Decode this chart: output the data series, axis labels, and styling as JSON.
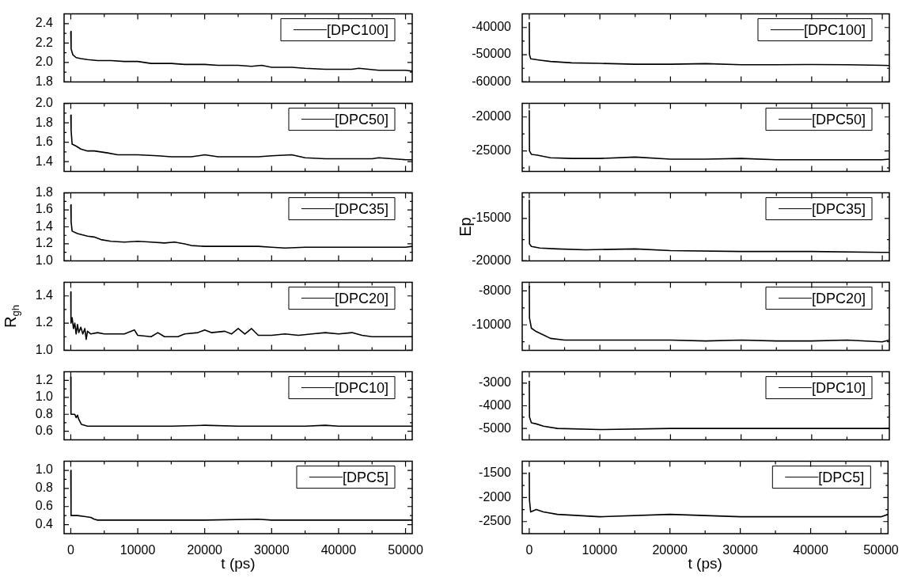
{
  "chart_data": [
    {
      "type": "line",
      "legend": "top right",
      "tick_labels": "y",
      "xlim": [
        -1000,
        51000
      ],
      "xticks": [
        0,
        {
          "value": 5000,
          "label": null
        },
        10000,
        {
          "value": 15000,
          "label": null
        },
        20000,
        {
          "value": 25000,
          "label": null
        },
        30000,
        {
          "value": 35000,
          "label": null
        },
        40000,
        {
          "value": 45000,
          "label": null
        },
        50000
      ],
      "ylim": [
        1.8,
        2.5
      ],
      "yticks": [
        1.8,
        {
          "value": 1.9,
          "label": null
        },
        {
          "value": 2,
          "label": "2.0"
        },
        {
          "value": 2.1,
          "label": null
        },
        2.2,
        {
          "value": 2.3,
          "label": null
        },
        2.4
      ],
      "x": [
        0,
        50,
        300,
        800,
        1500,
        2500,
        4000,
        6000,
        8000,
        10000,
        11000,
        12000,
        15000,
        17000,
        20000,
        22000,
        25000,
        27000,
        28500,
        30000,
        32000,
        33000,
        35000,
        38000,
        40000,
        42000,
        43000,
        44500,
        46000,
        48000,
        50000,
        51000
      ],
      "series": [
        {
          "name": "[DPC100]",
          "color": "#000000",
          "values": [
            2.32,
            2.14,
            2.08,
            2.05,
            2.04,
            2.03,
            2.02,
            2.02,
            2.01,
            2.01,
            2.0,
            1.99,
            1.99,
            1.98,
            1.98,
            1.97,
            1.97,
            1.96,
            1.97,
            1.95,
            1.95,
            1.95,
            1.94,
            1.93,
            1.93,
            1.93,
            1.94,
            1.93,
            1.92,
            1.92,
            1.92,
            1.91
          ]
        }
      ]
    },
    {
      "type": "line",
      "legend": "top right",
      "tick_labels": "y",
      "xlim": [
        -1000,
        51000
      ],
      "xticks": [
        0,
        {
          "value": 5000,
          "label": null
        },
        10000,
        {
          "value": 15000,
          "label": null
        },
        20000,
        {
          "value": 25000,
          "label": null
        },
        30000,
        {
          "value": 35000,
          "label": null
        },
        40000,
        {
          "value": 45000,
          "label": null
        },
        50000
      ],
      "ylim": [
        1.3,
        2.0
      ],
      "yticks": [
        1.4,
        {
          "value": 1.5,
          "label": null
        },
        1.6,
        {
          "value": 1.7,
          "label": null
        },
        1.8,
        {
          "value": 1.9,
          "label": null
        },
        {
          "value": 2,
          "label": "2.0"
        }
      ],
      "x": [
        0,
        50,
        200,
        800,
        1500,
        2500,
        3500,
        4500,
        5500,
        7000,
        10000,
        13000,
        15000,
        18000,
        20000,
        22000,
        25000,
        28000,
        30000,
        33000,
        35000,
        38000,
        40000,
        45000,
        46000,
        48000,
        50000,
        51000
      ],
      "series": [
        {
          "name": "[DPC50]",
          "color": "#000000",
          "values": [
            1.88,
            1.72,
            1.58,
            1.56,
            1.53,
            1.51,
            1.51,
            1.5,
            1.49,
            1.47,
            1.47,
            1.46,
            1.45,
            1.45,
            1.47,
            1.45,
            1.45,
            1.45,
            1.46,
            1.47,
            1.44,
            1.43,
            1.43,
            1.43,
            1.44,
            1.43,
            1.42,
            1.42
          ]
        }
      ]
    },
    {
      "type": "line",
      "legend": "top right",
      "tick_labels": "y",
      "xlim": [
        -1000,
        51000
      ],
      "xticks": [
        0,
        {
          "value": 5000,
          "label": null
        },
        10000,
        {
          "value": 15000,
          "label": null
        },
        20000,
        {
          "value": 25000,
          "label": null
        },
        30000,
        {
          "value": 35000,
          "label": null
        },
        40000,
        {
          "value": 45000,
          "label": null
        },
        50000
      ],
      "ylim": [
        1.0,
        1.8
      ],
      "yticks": [
        {
          "value": 1,
          "label": "1.0"
        },
        {
          "value": 1.1,
          "label": null
        },
        1.2,
        {
          "value": 1.3,
          "label": null
        },
        1.4,
        {
          "value": 1.5,
          "label": null
        },
        1.6,
        {
          "value": 1.7,
          "label": null
        },
        1.8
      ],
      "x": [
        0,
        50,
        200,
        1000,
        2500,
        3500,
        4500,
        6000,
        8000,
        10000,
        12000,
        14000,
        15500,
        17000,
        18000,
        20000,
        25000,
        28000,
        30000,
        32000,
        35000,
        40000,
        45000,
        50000,
        51000
      ],
      "series": [
        {
          "name": "[DPC35]",
          "color": "#000000",
          "values": [
            1.66,
            1.46,
            1.35,
            1.32,
            1.29,
            1.28,
            1.25,
            1.23,
            1.22,
            1.23,
            1.22,
            1.21,
            1.22,
            1.2,
            1.18,
            1.17,
            1.17,
            1.17,
            1.16,
            1.15,
            1.16,
            1.16,
            1.16,
            1.16,
            1.17
          ]
        }
      ]
    },
    {
      "type": "line",
      "legend": "top right",
      "tick_labels": "y",
      "ylabel": "R$_{gh}$",
      "xlim": [
        -1000,
        51000
      ],
      "xticks": [
        0,
        {
          "value": 5000,
          "label": null
        },
        10000,
        {
          "value": 15000,
          "label": null
        },
        20000,
        {
          "value": 25000,
          "label": null
        },
        30000,
        {
          "value": 35000,
          "label": null
        },
        40000,
        {
          "value": 45000,
          "label": null
        },
        50000
      ],
      "ylim": [
        1.0,
        1.5
      ],
      "yticks": [
        {
          "value": 1,
          "label": "1.0"
        },
        {
          "value": 1.1,
          "label": null
        },
        1.2,
        {
          "value": 1.3,
          "label": null
        },
        1.4
      ],
      "x": [
        0,
        30,
        200,
        400,
        600,
        800,
        1000,
        1200,
        1500,
        1800,
        2100,
        2300,
        2500,
        3000,
        4000,
        5000,
        6000,
        8000,
        9500,
        10000,
        12000,
        13000,
        14000,
        16000,
        17000,
        19000,
        20000,
        21000,
        23000,
        24000,
        25000,
        26000,
        27000,
        28000,
        30000,
        32000,
        34000,
        36000,
        38000,
        40000,
        42000,
        43500,
        45000,
        47000,
        50000,
        51000
      ],
      "series": [
        {
          "name": "[DPC20]",
          "color": "#000000",
          "values": [
            1.43,
            1.2,
            1.24,
            1.16,
            1.2,
            1.12,
            1.19,
            1.13,
            1.17,
            1.12,
            1.16,
            1.08,
            1.14,
            1.12,
            1.13,
            1.12,
            1.12,
            1.12,
            1.15,
            1.11,
            1.1,
            1.13,
            1.1,
            1.1,
            1.12,
            1.13,
            1.15,
            1.13,
            1.14,
            1.12,
            1.16,
            1.12,
            1.16,
            1.11,
            1.11,
            1.12,
            1.11,
            1.12,
            1.13,
            1.12,
            1.13,
            1.11,
            1.1,
            1.1,
            1.1,
            1.1
          ]
        }
      ]
    },
    {
      "type": "line",
      "legend": "top right",
      "tick_labels": "y",
      "xlim": [
        -1000,
        51000
      ],
      "xticks": [
        0,
        {
          "value": 5000,
          "label": null
        },
        10000,
        {
          "value": 15000,
          "label": null
        },
        20000,
        {
          "value": 25000,
          "label": null
        },
        30000,
        {
          "value": 35000,
          "label": null
        },
        40000,
        {
          "value": 45000,
          "label": null
        },
        50000
      ],
      "ylim": [
        0.5,
        1.3
      ],
      "yticks": [
        0.6,
        {
          "value": 0.7,
          "label": null
        },
        0.8,
        {
          "value": 0.9,
          "label": null
        },
        {
          "value": 1,
          "label": "1.0"
        },
        {
          "value": 1.1,
          "label": null
        },
        1.2
      ],
      "x": [
        0,
        30,
        600,
        800,
        1000,
        1200,
        1600,
        2500,
        5000,
        10000,
        15000,
        20000,
        25000,
        30000,
        35000,
        38000,
        40000,
        45000,
        50000,
        51000
      ],
      "series": [
        {
          "name": "[DPC10]",
          "color": "#000000",
          "values": [
            1.24,
            0.8,
            0.8,
            0.76,
            0.79,
            0.74,
            0.68,
            0.66,
            0.66,
            0.66,
            0.66,
            0.67,
            0.66,
            0.66,
            0.66,
            0.67,
            0.66,
            0.66,
            0.66,
            0.66
          ]
        }
      ]
    },
    {
      "type": "line",
      "legend": "top right",
      "xlabel": "t (ps)",
      "xlim": [
        -1000,
        51000
      ],
      "xticks": [
        0,
        {
          "value": 5000,
          "label": null
        },
        10000,
        {
          "value": 15000,
          "label": null
        },
        20000,
        {
          "value": 25000,
          "label": null
        },
        30000,
        {
          "value": 35000,
          "label": null
        },
        40000,
        {
          "value": 45000,
          "label": null
        },
        50000
      ],
      "ylim": [
        0.3,
        1.1
      ],
      "yticks": [
        0.4,
        {
          "value": 0.5,
          "label": null
        },
        0.6,
        {
          "value": 0.7,
          "label": null
        },
        0.8,
        {
          "value": 0.9,
          "label": null
        },
        {
          "value": 1,
          "label": "1.0"
        }
      ],
      "x": [
        0,
        40,
        1000,
        2000,
        3000,
        3500,
        4000,
        10000,
        20000,
        28000,
        30000,
        40000,
        50000,
        51000
      ],
      "series": [
        {
          "name": "[DPC5]",
          "color": "#000000",
          "values": [
            1.0,
            0.5,
            0.5,
            0.49,
            0.48,
            0.46,
            0.45,
            0.45,
            0.45,
            0.46,
            0.45,
            0.45,
            0.45,
            0.45
          ]
        }
      ]
    },
    {
      "type": "line",
      "legend": "top right",
      "tick_labels": "y",
      "xlim": [
        -1000,
        51000
      ],
      "xticks": [
        0,
        {
          "value": 5000,
          "label": null
        },
        10000,
        {
          "value": 15000,
          "label": null
        },
        20000,
        {
          "value": 25000,
          "label": null
        },
        30000,
        {
          "value": 35000,
          "label": null
        },
        40000,
        {
          "value": 45000,
          "label": null
        },
        50000
      ],
      "ylim": [
        -60000,
        -35000
      ],
      "yticks": [
        -60000,
        {
          "value": -55000,
          "label": null
        },
        -50000,
        {
          "value": -45000,
          "label": null
        },
        -40000
      ],
      "x": [
        0,
        30,
        200,
        1500,
        3000,
        6000,
        10000,
        15000,
        20000,
        25000,
        30000,
        35000,
        40000,
        45000,
        50000,
        51000
      ],
      "series": [
        {
          "name": "[DPC100]",
          "color": "#000000",
          "values": [
            -38000,
            -50000,
            -51500,
            -52000,
            -52500,
            -53000,
            -53200,
            -53500,
            -53500,
            -53300,
            -53700,
            -53700,
            -53600,
            -53700,
            -53900,
            -54000
          ]
        }
      ]
    },
    {
      "type": "line",
      "legend": "top right",
      "tick_labels": "y",
      "xlim": [
        -1000,
        51000
      ],
      "xticks": [
        0,
        {
          "value": 5000,
          "label": null
        },
        10000,
        {
          "value": 15000,
          "label": null
        },
        20000,
        {
          "value": 25000,
          "label": null
        },
        30000,
        {
          "value": 35000,
          "label": null
        },
        40000,
        {
          "value": 45000,
          "label": null
        },
        50000
      ],
      "ylim": [
        -28000,
        -18000
      ],
      "yticks": [
        {
          "value": -27500,
          "label": null
        },
        -25000,
        {
          "value": -22500,
          "label": null
        },
        -20000
      ],
      "x": [
        0,
        30,
        300,
        1000,
        3000,
        6000,
        10000,
        15000,
        20000,
        25000,
        30000,
        35000,
        40000,
        45000,
        50000,
        51000
      ],
      "series": [
        {
          "name": "[DPC50]",
          "color": "#000000",
          "values": [
            -19000,
            -25000,
            -25500,
            -25600,
            -26000,
            -26100,
            -26100,
            -25900,
            -26200,
            -26200,
            -26100,
            -26300,
            -26300,
            -26300,
            -26300,
            -26200
          ]
        }
      ]
    },
    {
      "type": "line",
      "legend": "top right",
      "tick_labels": "y",
      "ylabel": "Ep",
      "xlim": [
        -1000,
        51000
      ],
      "xticks": [
        0,
        {
          "value": 5000,
          "label": null
        },
        10000,
        {
          "value": 15000,
          "label": null
        },
        20000,
        {
          "value": 25000,
          "label": null
        },
        30000,
        {
          "value": 35000,
          "label": null
        },
        40000,
        {
          "value": 45000,
          "label": null
        },
        50000
      ],
      "ylim": [
        -20000,
        -12000
      ],
      "yticks": [
        -20000,
        {
          "value": -17500,
          "label": null
        },
        -15000,
        {
          "value": -12500,
          "label": null
        }
      ],
      "x": [
        0,
        30,
        300,
        1500,
        4000,
        8000,
        15000,
        20000,
        30000,
        40000,
        50000,
        51000
      ],
      "series": [
        {
          "name": "[DPC35]",
          "color": "#000000",
          "values": [
            -12800,
            -18000,
            -18300,
            -18500,
            -18600,
            -18700,
            -18600,
            -18800,
            -18900,
            -18900,
            -19000,
            -19000
          ]
        }
      ]
    },
    {
      "type": "line",
      "legend": "top right",
      "tick_labels": "y",
      "xlim": [
        -1000,
        51000
      ],
      "xticks": [
        0,
        {
          "value": 5000,
          "label": null
        },
        10000,
        {
          "value": 15000,
          "label": null
        },
        20000,
        {
          "value": 25000,
          "label": null
        },
        30000,
        {
          "value": 35000,
          "label": null
        },
        40000,
        {
          "value": 45000,
          "label": null
        },
        50000
      ],
      "ylim": [
        -11500,
        -7500
      ],
      "yticks": [
        {
          "value": -11000,
          "label": null
        },
        -10000,
        {
          "value": -9000,
          "label": null
        },
        -8000
      ],
      "x": [
        0,
        30,
        300,
        1000,
        2000,
        3000,
        5000,
        10000,
        15000,
        20000,
        25000,
        30000,
        35000,
        40000,
        45000,
        50000,
        51000
      ],
      "series": [
        {
          "name": "[DPC20]",
          "color": "#000000",
          "values": [
            -7700,
            -9600,
            -10200,
            -10400,
            -10600,
            -10800,
            -10900,
            -10900,
            -10900,
            -10900,
            -10950,
            -10900,
            -10950,
            -10950,
            -10900,
            -11000,
            -10900
          ]
        }
      ]
    },
    {
      "type": "line",
      "legend": "top right",
      "tick_labels": "y",
      "xlim": [
        -1000,
        51000
      ],
      "xticks": [
        0,
        {
          "value": 5000,
          "label": null
        },
        10000,
        {
          "value": 15000,
          "label": null
        },
        20000,
        {
          "value": 25000,
          "label": null
        },
        30000,
        {
          "value": 35000,
          "label": null
        },
        40000,
        {
          "value": 45000,
          "label": null
        },
        50000
      ],
      "ylim": [
        -5500,
        -2500
      ],
      "yticks": [
        -5000,
        {
          "value": -4500,
          "label": null
        },
        -4000,
        {
          "value": -3500,
          "label": null
        },
        -3000
      ],
      "x": [
        0,
        30,
        300,
        1000,
        2000,
        4000,
        10000,
        20000,
        30000,
        40000,
        50000,
        51000
      ],
      "series": [
        {
          "name": "[DPC10]",
          "color": "#000000",
          "values": [
            -2900,
            -4500,
            -4750,
            -4800,
            -4900,
            -5000,
            -5050,
            -5000,
            -5000,
            -5000,
            -5000,
            -5000
          ]
        }
      ]
    },
    {
      "type": "line",
      "legend": "top right",
      "xlabel": "t (ps)",
      "xlim": [
        -1000,
        51000
      ],
      "xticks": [
        0,
        {
          "value": 5000,
          "label": null
        },
        10000,
        {
          "value": 15000,
          "label": null
        },
        20000,
        {
          "value": 25000,
          "label": null
        },
        30000,
        {
          "value": 35000,
          "label": null
        },
        40000,
        {
          "value": 45000,
          "label": null
        },
        50000
      ],
      "ylim": [
        -2750,
        -1250
      ],
      "yticks": [
        -2500,
        {
          "value": -2250,
          "label": null
        },
        -2000,
        {
          "value": -1750,
          "label": null
        },
        -1500
      ],
      "x": [
        0,
        30,
        200,
        1000,
        2000,
        4000,
        10000,
        20000,
        30000,
        40000,
        50000,
        51000
      ],
      "series": [
        {
          "name": "[DPC5]",
          "color": "#000000",
          "values": [
            -1480,
            -2050,
            -2300,
            -2250,
            -2300,
            -2350,
            -2400,
            -2350,
            -2400,
            -2400,
            -2400,
            -2350
          ]
        }
      ]
    }
  ]
}
